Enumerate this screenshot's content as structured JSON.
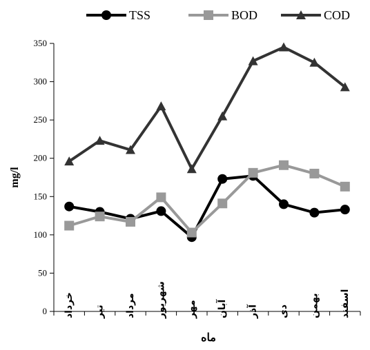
{
  "chart_data": {
    "type": "line",
    "xlabel": "ماه",
    "ylabel": "mg/l",
    "categories": [
      "خرداد",
      "تیر",
      "مرداد",
      "شهریور",
      "مهر",
      "آبان",
      "آذر",
      "دی",
      "بهمن",
      "اسفند"
    ],
    "ylim": [
      0,
      350
    ],
    "yticks": [
      0,
      50,
      100,
      150,
      200,
      250,
      300,
      350
    ],
    "grid": false,
    "legend_position": "top",
    "series": [
      {
        "name": "TSS",
        "color": "#000000",
        "marker": "circle",
        "values": [
          137,
          130,
          121,
          131,
          97,
          173,
          177,
          140,
          129,
          133
        ]
      },
      {
        "name": "BOD",
        "color": "#999999",
        "marker": "square",
        "values": [
          112,
          124,
          117,
          149,
          103,
          141,
          181,
          191,
          180,
          163
        ]
      },
      {
        "name": "COD",
        "color": "#333333",
        "marker": "triangle",
        "values": [
          196,
          223,
          211,
          268,
          186,
          255,
          327,
          345,
          325,
          293
        ]
      }
    ]
  }
}
